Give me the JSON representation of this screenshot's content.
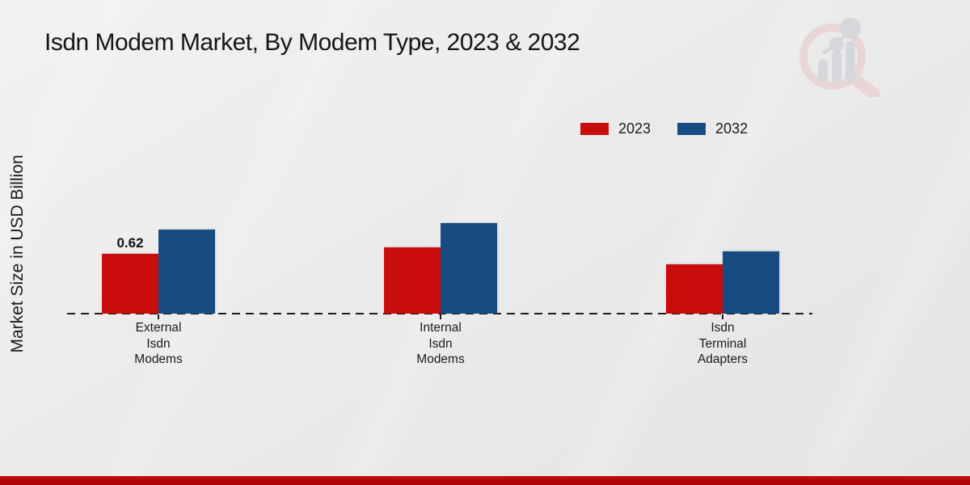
{
  "title": "Isdn Modem Market, By Modem Type, 2023 & 2032",
  "y_axis_label": "Market Size in USD Billion",
  "legend": [
    {
      "label": "2023",
      "color": "#c90d0d"
    },
    {
      "label": "2032",
      "color": "#164c82"
    }
  ],
  "icons": {
    "watermark": "magnifier-bar-chart-logo"
  },
  "colors": {
    "series_2023": "#c90d0d",
    "series_2032": "#164c82",
    "baseline": "#1c1c1c",
    "text": "#1b1b1b",
    "bottom_strip": "#b70909",
    "background": "#ebebeb"
  },
  "chart_data": {
    "type": "bar",
    "title": "Isdn Modem Market, By Modem Type, 2023 & 2032",
    "xlabel": "",
    "ylabel": "Market Size in USD Billion",
    "categories": [
      "External Isdn Modems",
      "Internal Isdn Modems",
      "Isdn Terminal Adapters"
    ],
    "category_label_lines": [
      [
        "External",
        "Isdn",
        "Modems"
      ],
      [
        "Internal",
        "Isdn",
        "Modems"
      ],
      [
        "Isdn",
        "Terminal",
        "Adapters"
      ]
    ],
    "series": [
      {
        "name": "2023",
        "color": "#c90d0d",
        "values": [
          0.62,
          0.69,
          0.51
        ]
      },
      {
        "name": "2032",
        "color": "#164c82",
        "values": [
          0.87,
          0.94,
          0.65
        ]
      }
    ],
    "bar_labels": [
      {
        "series": "2023",
        "category_index": 0,
        "text": "0.62"
      }
    ],
    "ylim": [
      0,
      1.0
    ],
    "grid": false,
    "axis_ticks_visible": false,
    "legend_position": "top-right",
    "baseline_style": "dashed"
  }
}
